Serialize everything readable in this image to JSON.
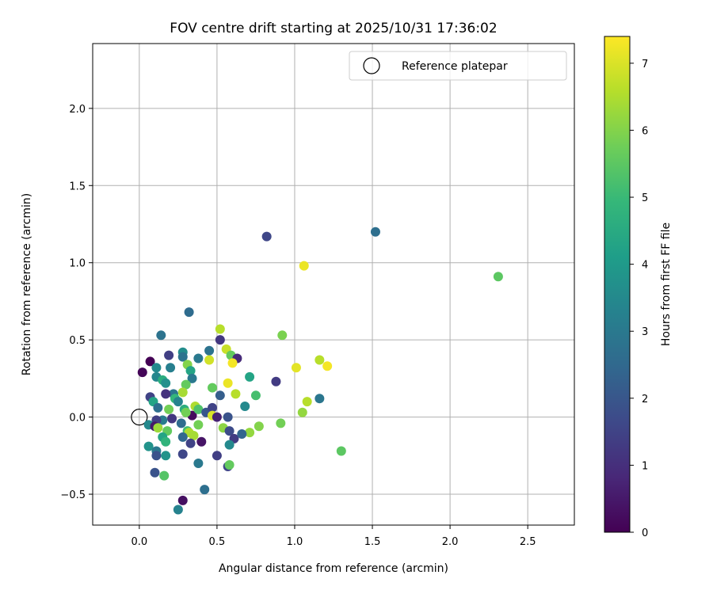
{
  "chart_data": {
    "type": "scatter",
    "title": "FOV centre drift starting at 2025/10/31 17:36:02",
    "xlabel": "Angular distance from reference (arcmin)",
    "ylabel": "Rotation from reference (arcmin)",
    "xlim": [
      -0.3,
      2.8
    ],
    "ylim": [
      -0.7,
      2.42
    ],
    "xticks": [
      0.0,
      0.5,
      1.0,
      1.5,
      2.0,
      2.5
    ],
    "xtick_labels": [
      "0.0",
      "0.5",
      "1.0",
      "1.5",
      "2.0",
      "2.5"
    ],
    "yticks": [
      -0.5,
      0.0,
      0.5,
      1.0,
      1.5,
      2.0
    ],
    "ytick_labels": [
      "−0.5",
      "0.0",
      "0.5",
      "1.0",
      "1.5",
      "2.0"
    ],
    "grid": true,
    "legend": {
      "position": "top-right",
      "entries": [
        "Reference platepar"
      ]
    },
    "reference_point": {
      "x": 0.0,
      "y": 0.0
    },
    "colorbar": {
      "label": "Hours from first FF file",
      "colormap": "viridis",
      "min": 0,
      "max": 7.4,
      "ticks": [
        0,
        1,
        2,
        3,
        4,
        5,
        6,
        7
      ],
      "tick_labels": [
        "0",
        "1",
        "2",
        "3",
        "4",
        "5",
        "6",
        "7"
      ]
    },
    "points": [
      {
        "x": 0.02,
        "y": 0.29,
        "c": 0.1
      },
      {
        "x": 0.07,
        "y": 0.36,
        "c": 0.0
      },
      {
        "x": 0.28,
        "y": -0.54,
        "c": 0.3
      },
      {
        "x": 0.34,
        "y": 0.01,
        "c": 0.2
      },
      {
        "x": 0.4,
        "y": -0.16,
        "c": 0.4
      },
      {
        "x": 0.82,
        "y": 1.17,
        "c": 1.6
      },
      {
        "x": 1.52,
        "y": 1.2,
        "c": 2.7
      },
      {
        "x": 2.31,
        "y": 0.91,
        "c": 5.5
      },
      {
        "x": 1.06,
        "y": 0.98,
        "c": 7.2
      },
      {
        "x": 0.32,
        "y": 0.68,
        "c": 2.6
      },
      {
        "x": 0.14,
        "y": 0.53,
        "c": 2.8
      },
      {
        "x": 0.52,
        "y": 0.57,
        "c": 6.6
      },
      {
        "x": 0.52,
        "y": 0.5,
        "c": 1.2
      },
      {
        "x": 0.56,
        "y": 0.44,
        "c": 6.8
      },
      {
        "x": 0.59,
        "y": 0.4,
        "c": 5.6
      },
      {
        "x": 0.63,
        "y": 0.38,
        "c": 0.9
      },
      {
        "x": 0.6,
        "y": 0.35,
        "c": 7.3
      },
      {
        "x": 0.92,
        "y": 0.53,
        "c": 5.9
      },
      {
        "x": 1.01,
        "y": 0.32,
        "c": 7.1
      },
      {
        "x": 1.16,
        "y": 0.37,
        "c": 6.6
      },
      {
        "x": 1.21,
        "y": 0.33,
        "c": 7.3
      },
      {
        "x": 1.16,
        "y": 0.12,
        "c": 2.9
      },
      {
        "x": 1.08,
        "y": 0.1,
        "c": 6.6
      },
      {
        "x": 1.05,
        "y": 0.03,
        "c": 6.2
      },
      {
        "x": 0.88,
        "y": 0.23,
        "c": 1.3
      },
      {
        "x": 0.91,
        "y": -0.04,
        "c": 5.8
      },
      {
        "x": 1.3,
        "y": -0.22,
        "c": 5.5
      },
      {
        "x": 0.71,
        "y": 0.26,
        "c": 4.3
      },
      {
        "x": 0.75,
        "y": 0.14,
        "c": 5.2
      },
      {
        "x": 0.68,
        "y": 0.07,
        "c": 3.5
      },
      {
        "x": 0.77,
        "y": -0.06,
        "c": 6.0
      },
      {
        "x": 0.71,
        "y": -0.1,
        "c": 6.2
      },
      {
        "x": 0.57,
        "y": 0.22,
        "c": 7.2
      },
      {
        "x": 0.62,
        "y": 0.15,
        "c": 6.6
      },
      {
        "x": 0.52,
        "y": 0.14,
        "c": 2.2
      },
      {
        "x": 0.45,
        "y": 0.43,
        "c": 2.8
      },
      {
        "x": 0.45,
        "y": 0.37,
        "c": 6.9
      },
      {
        "x": 0.38,
        "y": 0.38,
        "c": 3.0
      },
      {
        "x": 0.28,
        "y": 0.42,
        "c": 3.6
      },
      {
        "x": 0.28,
        "y": 0.39,
        "c": 2.8
      },
      {
        "x": 0.19,
        "y": 0.4,
        "c": 1.4
      },
      {
        "x": 0.11,
        "y": 0.32,
        "c": 3.5
      },
      {
        "x": 0.2,
        "y": 0.32,
        "c": 3.2
      },
      {
        "x": 0.31,
        "y": 0.34,
        "c": 6.0
      },
      {
        "x": 0.33,
        "y": 0.3,
        "c": 4.3
      },
      {
        "x": 0.34,
        "y": 0.25,
        "c": 3.0
      },
      {
        "x": 0.3,
        "y": 0.21,
        "c": 5.6
      },
      {
        "x": 0.11,
        "y": 0.26,
        "c": 3.4
      },
      {
        "x": 0.15,
        "y": 0.24,
        "c": 4.6
      },
      {
        "x": 0.17,
        "y": 0.22,
        "c": 3.7
      },
      {
        "x": 0.28,
        "y": 0.16,
        "c": 6.4
      },
      {
        "x": 0.22,
        "y": 0.15,
        "c": 2.9
      },
      {
        "x": 0.17,
        "y": 0.15,
        "c": 1.1
      },
      {
        "x": 0.07,
        "y": 0.13,
        "c": 1.5
      },
      {
        "x": 0.09,
        "y": 0.1,
        "c": 4.3
      },
      {
        "x": 0.12,
        "y": 0.06,
        "c": 2.7
      },
      {
        "x": 0.19,
        "y": 0.05,
        "c": 5.8
      },
      {
        "x": 0.23,
        "y": 0.12,
        "c": 4.9
      },
      {
        "x": 0.25,
        "y": 0.1,
        "c": 3.3
      },
      {
        "x": 0.29,
        "y": 0.05,
        "c": 4.6
      },
      {
        "x": 0.3,
        "y": 0.03,
        "c": 5.8
      },
      {
        "x": 0.36,
        "y": 0.07,
        "c": 6.5
      },
      {
        "x": 0.38,
        "y": 0.05,
        "c": 5.3
      },
      {
        "x": 0.43,
        "y": 0.03,
        "c": 2.0
      },
      {
        "x": 0.47,
        "y": 0.06,
        "c": 1.5
      },
      {
        "x": 0.47,
        "y": 0.01,
        "c": 7.0
      },
      {
        "x": 0.5,
        "y": 0.0,
        "c": 0.7
      },
      {
        "x": 0.57,
        "y": 0.0,
        "c": 1.9
      },
      {
        "x": 0.47,
        "y": 0.19,
        "c": 5.6
      },
      {
        "x": 0.21,
        "y": -0.01,
        "c": 1.2
      },
      {
        "x": 0.15,
        "y": -0.02,
        "c": 3.1
      },
      {
        "x": 0.11,
        "y": -0.02,
        "c": 1.4
      },
      {
        "x": 0.06,
        "y": -0.05,
        "c": 3.5
      },
      {
        "x": 0.1,
        "y": -0.06,
        "c": 0.5
      },
      {
        "x": 0.12,
        "y": -0.07,
        "c": 6.3
      },
      {
        "x": 0.18,
        "y": -0.09,
        "c": 5.6
      },
      {
        "x": 0.27,
        "y": -0.04,
        "c": 2.6
      },
      {
        "x": 0.31,
        "y": -0.09,
        "c": 5.1
      },
      {
        "x": 0.32,
        "y": -0.1,
        "c": 6.5
      },
      {
        "x": 0.35,
        "y": -0.12,
        "c": 6.4
      },
      {
        "x": 0.38,
        "y": -0.05,
        "c": 5.8
      },
      {
        "x": 0.28,
        "y": -0.13,
        "c": 2.5
      },
      {
        "x": 0.33,
        "y": -0.17,
        "c": 1.5
      },
      {
        "x": 0.15,
        "y": -0.13,
        "c": 4.3
      },
      {
        "x": 0.17,
        "y": -0.16,
        "c": 4.8
      },
      {
        "x": 0.06,
        "y": -0.19,
        "c": 3.8
      },
      {
        "x": 0.11,
        "y": -0.22,
        "c": 3.0
      },
      {
        "x": 0.11,
        "y": -0.25,
        "c": 1.9
      },
      {
        "x": 0.17,
        "y": -0.25,
        "c": 3.8
      },
      {
        "x": 0.28,
        "y": -0.24,
        "c": 1.6
      },
      {
        "x": 0.38,
        "y": -0.3,
        "c": 3.0
      },
      {
        "x": 0.5,
        "y": -0.25,
        "c": 1.4
      },
      {
        "x": 0.57,
        "y": -0.32,
        "c": 1.6
      },
      {
        "x": 0.58,
        "y": -0.31,
        "c": 5.6
      },
      {
        "x": 0.1,
        "y": -0.36,
        "c": 1.9
      },
      {
        "x": 0.16,
        "y": -0.38,
        "c": 5.4
      },
      {
        "x": 0.42,
        "y": -0.47,
        "c": 2.7
      },
      {
        "x": 0.25,
        "y": -0.6,
        "c": 3.3
      },
      {
        "x": 0.54,
        "y": -0.07,
        "c": 6.1
      },
      {
        "x": 0.58,
        "y": -0.09,
        "c": 1.7
      },
      {
        "x": 0.61,
        "y": -0.14,
        "c": 1.3
      },
      {
        "x": 0.58,
        "y": -0.18,
        "c": 3.5
      },
      {
        "x": 0.66,
        "y": -0.11,
        "c": 2.4
      }
    ]
  }
}
